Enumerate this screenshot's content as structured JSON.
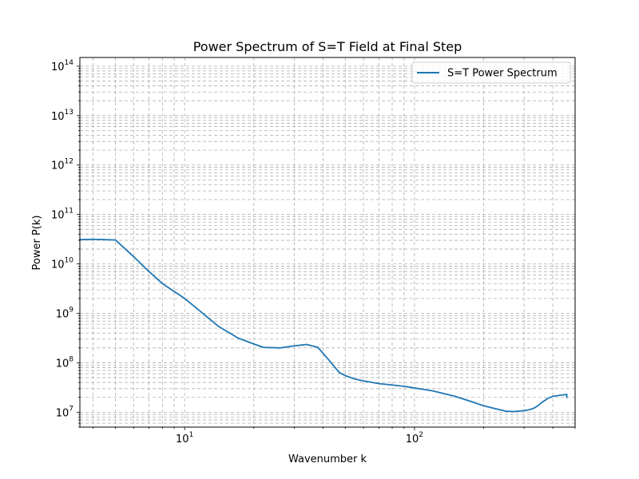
{
  "chart_data": {
    "type": "line",
    "title": "Power Spectrum of S=T Field at Final Step",
    "xlabel": "Wavenumber k",
    "ylabel": "Power P(k)",
    "xscale": "log",
    "yscale": "log",
    "xlim": [
      3.5,
      500
    ],
    "ylim": [
      5000000.0,
      150000000000000.0
    ],
    "grid": true,
    "grid_style": "dashed",
    "legend_position": "top-right",
    "x_ticks": [
      {
        "value": 10,
        "base": "10",
        "exp": "1"
      },
      {
        "value": 100,
        "base": "10",
        "exp": "2"
      }
    ],
    "y_ticks": [
      {
        "value": 10000000.0,
        "base": "10",
        "exp": "7"
      },
      {
        "value": 100000000.0,
        "base": "10",
        "exp": "8"
      },
      {
        "value": 1000000000.0,
        "base": "10",
        "exp": "9"
      },
      {
        "value": 10000000000.0,
        "base": "10",
        "exp": "10"
      },
      {
        "value": 100000000000.0,
        "base": "10",
        "exp": "11"
      },
      {
        "value": 1000000000000.0,
        "base": "10",
        "exp": "12"
      },
      {
        "value": 10000000000000.0,
        "base": "10",
        "exp": "13"
      },
      {
        "value": 100000000000000.0,
        "base": "10",
        "exp": "14"
      }
    ],
    "series": [
      {
        "name": "S=T Power Spectrum",
        "color": "#1f77b4",
        "x": [
          3.5,
          4,
          4.5,
          5,
          6,
          7,
          8,
          10,
          12,
          14,
          17,
          20,
          22,
          26,
          30,
          34,
          38,
          42,
          47,
          50,
          55,
          60,
          70,
          80,
          90,
          100,
          120,
          150,
          180,
          200,
          230,
          250,
          270,
          290,
          310,
          330,
          340,
          360,
          380,
          400,
          430,
          460,
          460
        ],
        "y": [
          31000000000.0,
          31500000000.0,
          31000000000.0,
          30500000000.0,
          14000000000.0,
          7000000000.0,
          4000000000.0,
          2000000000.0,
          1000000000.0,
          550000000.0,
          320000000.0,
          240000000.0,
          205000000.0,
          200000000.0,
          220000000.0,
          235000000.0,
          205000000.0,
          120000000.0,
          64000000.0,
          55000000.0,
          47000000.0,
          43000000.0,
          38000000.0,
          35500000.0,
          33500000.0,
          31000000.0,
          27000000.0,
          21000000.0,
          16000000.0,
          13500000.0,
          11500000.0,
          10500000.0,
          10300000.0,
          10600000.0,
          11000000.0,
          12000000.0,
          13000000.0,
          16000000.0,
          19000000.0,
          21000000.0,
          22000000.0,
          23000000.0,
          20000000.0
        ]
      }
    ]
  }
}
